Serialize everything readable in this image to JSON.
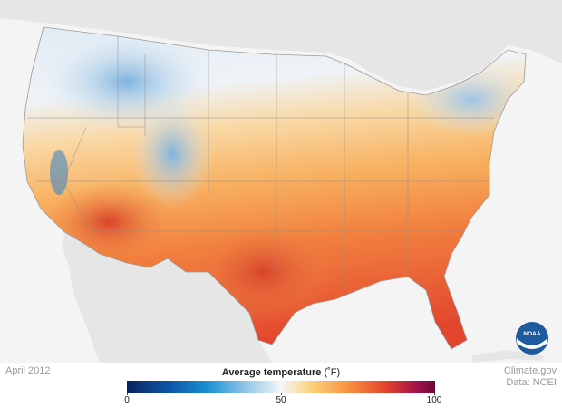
{
  "map": {
    "period": "April 2012",
    "legend_title": "Average temperature",
    "legend_unit": "(˚F)",
    "legend_ticks": [
      "0",
      "50",
      "100"
    ],
    "credit_line1": "Climate.gov",
    "credit_line2": "Data: NCEI",
    "logo_text": "NOAA"
  },
  "colors": {
    "land_outside": "#e6e6e6",
    "ocean": "#f4f4f4",
    "cold": "#2f7fc4",
    "cool": "#dbe8f3",
    "neutral": "#f3f5f7",
    "mild": "#f9c27a",
    "warm": "#f39248",
    "hot": "#e35a36"
  }
}
